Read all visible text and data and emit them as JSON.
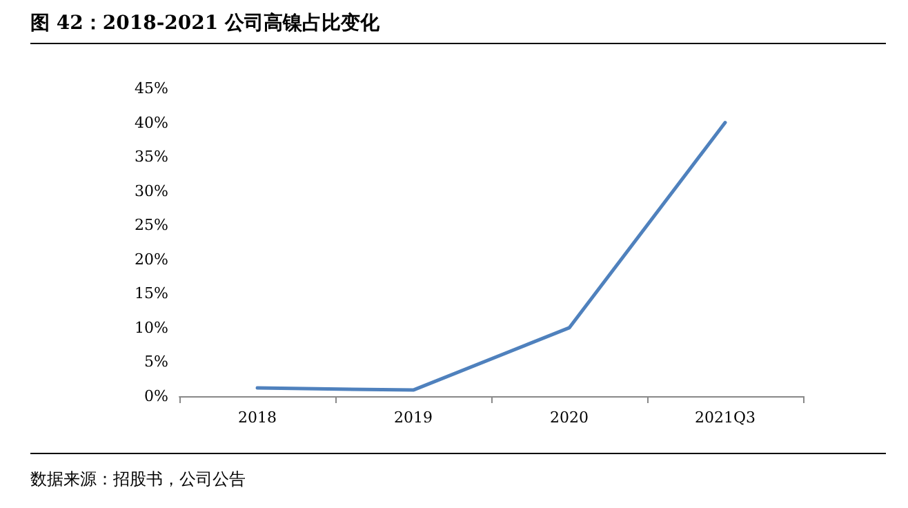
{
  "chart_data": {
    "type": "line",
    "title": "图 42：2018-2021 公司高镍占比变化",
    "categories": [
      "2018",
      "2019",
      "2020",
      "2021Q3"
    ],
    "series": [
      {
        "color": "#4f81bd",
        "values": [
          1.2,
          0.9,
          10,
          40
        ]
      }
    ],
    "ylim": [
      0,
      45
    ],
    "yticks": [
      {
        "value": 0,
        "label": "0%"
      },
      {
        "value": 5,
        "label": "5%"
      },
      {
        "value": 10,
        "label": "10%"
      },
      {
        "value": 15,
        "label": "15%"
      },
      {
        "value": 20,
        "label": "20%"
      },
      {
        "value": 25,
        "label": "25%"
      },
      {
        "value": 30,
        "label": "30%"
      },
      {
        "value": 35,
        "label": "35%"
      },
      {
        "value": 40,
        "label": "40%"
      },
      {
        "value": 45,
        "label": "45%"
      }
    ],
    "grid": false,
    "marker": "none",
    "line_style": "solid",
    "annotations": [
      "数据来源：招股书，公司公告"
    ]
  }
}
